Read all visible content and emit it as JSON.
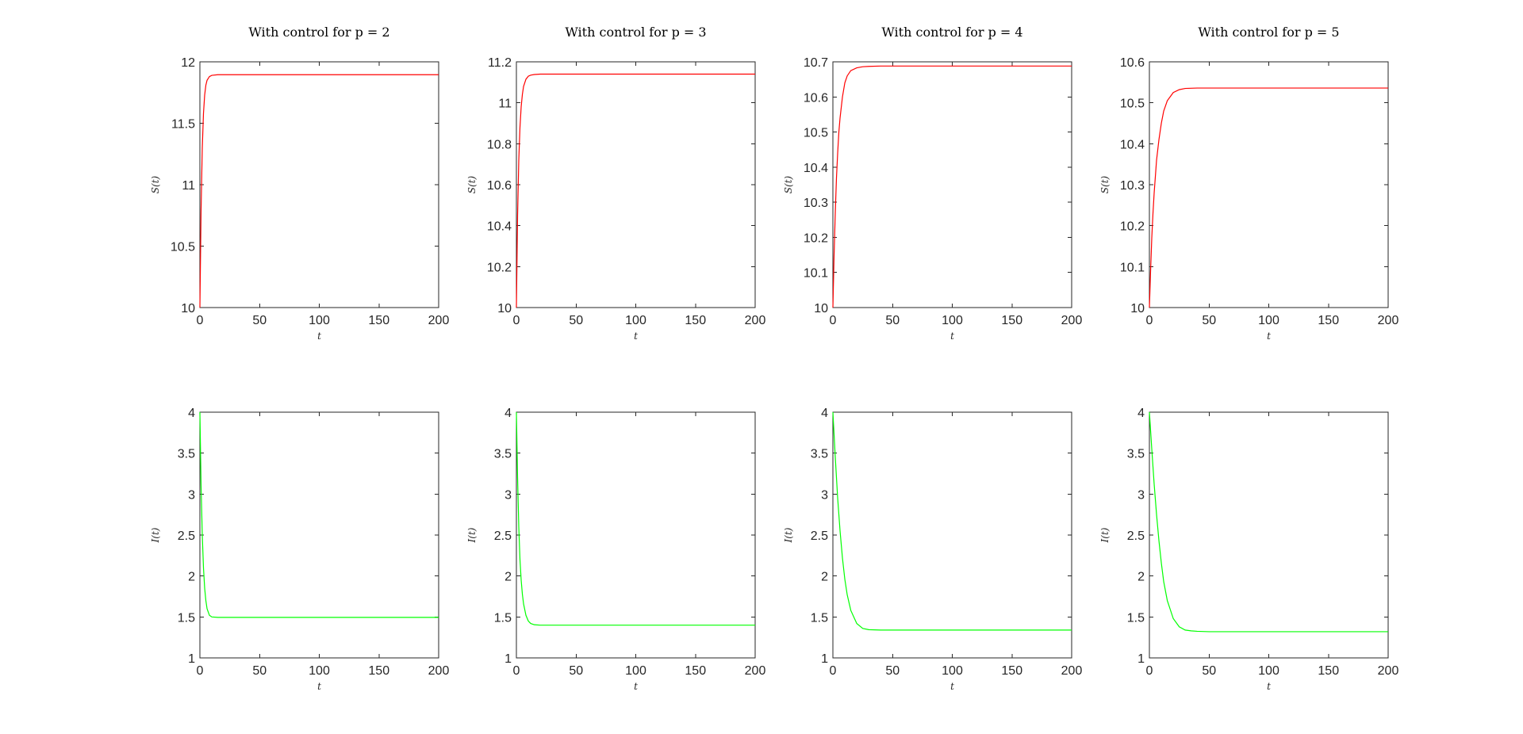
{
  "chart_data": [
    {
      "id": "s_p2",
      "type": "line",
      "title": "With control for p = 2",
      "xlabel": "t",
      "ylabel": "S(t)",
      "xlim": [
        0,
        200
      ],
      "ylim": [
        10,
        12
      ],
      "xticks": [
        0,
        50,
        100,
        150,
        200
      ],
      "yticks": [
        10,
        10.5,
        11,
        11.5,
        12
      ],
      "ytick_labels": [
        "10",
        "10.5",
        "11",
        "11.5",
        "12"
      ],
      "color": "#ff0000",
      "x": [
        0,
        1,
        2,
        3,
        4,
        5,
        6,
        8,
        10,
        15,
        20,
        50,
        100,
        150,
        200
      ],
      "y": [
        10,
        10.8,
        11.3,
        11.58,
        11.73,
        11.81,
        11.85,
        11.88,
        11.89,
        11.895,
        11.895,
        11.895,
        11.895,
        11.895,
        11.895
      ]
    },
    {
      "id": "s_p3",
      "type": "line",
      "title": "With control for p = 3",
      "xlabel": "t",
      "ylabel": "S(t)",
      "xlim": [
        0,
        200
      ],
      "ylim": [
        10,
        11.2
      ],
      "xticks": [
        0,
        50,
        100,
        150,
        200
      ],
      "yticks": [
        10,
        10.2,
        10.4,
        10.6,
        10.8,
        11,
        11.2
      ],
      "ytick_labels": [
        "10",
        "10.2",
        "10.4",
        "10.6",
        "10.8",
        "11",
        "11.2"
      ],
      "color": "#ff0000",
      "x": [
        0,
        1,
        2,
        3,
        4,
        5,
        6,
        8,
        10,
        12,
        15,
        20,
        30,
        50,
        100,
        150,
        200
      ],
      "y": [
        10,
        10.45,
        10.72,
        10.88,
        10.98,
        11.04,
        11.08,
        11.115,
        11.13,
        11.135,
        11.138,
        11.14,
        11.14,
        11.14,
        11.14,
        11.14,
        11.14
      ]
    },
    {
      "id": "s_p4",
      "type": "line",
      "title": "With control for p = 4",
      "xlabel": "t",
      "ylabel": "S(t)",
      "xlim": [
        0,
        200
      ],
      "ylim": [
        10,
        10.7
      ],
      "xticks": [
        0,
        50,
        100,
        150,
        200
      ],
      "yticks": [
        10,
        10.1,
        10.2,
        10.3,
        10.4,
        10.5,
        10.6,
        10.7
      ],
      "ytick_labels": [
        "10",
        "10.1",
        "10.2",
        "10.3",
        "10.4",
        "10.5",
        "10.6",
        "10.7"
      ],
      "color": "#ff0000",
      "x": [
        0,
        1,
        2,
        3,
        4,
        5,
        6,
        8,
        10,
        12,
        15,
        20,
        25,
        30,
        40,
        50,
        100,
        150,
        200
      ],
      "y": [
        10,
        10.15,
        10.27,
        10.37,
        10.44,
        10.5,
        10.54,
        10.6,
        10.64,
        10.66,
        10.675,
        10.683,
        10.686,
        10.687,
        10.688,
        10.688,
        10.688,
        10.688,
        10.688
      ]
    },
    {
      "id": "s_p5",
      "type": "line",
      "title": "With control for p = 5",
      "xlabel": "t",
      "ylabel": "S(t)",
      "xlim": [
        0,
        200
      ],
      "ylim": [
        10,
        10.6
      ],
      "xticks": [
        0,
        50,
        100,
        150,
        200
      ],
      "yticks": [
        10,
        10.1,
        10.2,
        10.3,
        10.4,
        10.5,
        10.6
      ],
      "ytick_labels": [
        "10",
        "10.1",
        "10.2",
        "10.3",
        "10.4",
        "10.5",
        "10.6"
      ],
      "color": "#ff0000",
      "x": [
        0,
        1,
        2,
        3,
        4,
        5,
        6,
        8,
        10,
        12,
        15,
        20,
        25,
        30,
        40,
        50,
        100,
        150,
        200
      ],
      "y": [
        10,
        10.09,
        10.17,
        10.23,
        10.28,
        10.32,
        10.36,
        10.41,
        10.45,
        10.48,
        10.505,
        10.525,
        10.532,
        10.535,
        10.536,
        10.536,
        10.536,
        10.536,
        10.536
      ]
    },
    {
      "id": "i_p2",
      "type": "line",
      "title": "",
      "xlabel": "t",
      "ylabel": "I(t)",
      "xlim": [
        0,
        200
      ],
      "ylim": [
        1,
        4
      ],
      "xticks": [
        0,
        50,
        100,
        150,
        200
      ],
      "yticks": [
        1,
        1.5,
        2,
        2.5,
        3,
        3.5,
        4
      ],
      "ytick_labels": [
        "1",
        "1.5",
        "2",
        "2.5",
        "3",
        "3.5",
        "4"
      ],
      "color": "#00ff00",
      "x": [
        0,
        1,
        2,
        3,
        4,
        5,
        6,
        8,
        10,
        15,
        20,
        50,
        100,
        150,
        200
      ],
      "y": [
        4,
        3.1,
        2.5,
        2.1,
        1.85,
        1.7,
        1.6,
        1.52,
        1.5,
        1.495,
        1.495,
        1.495,
        1.495,
        1.495,
        1.495
      ]
    },
    {
      "id": "i_p3",
      "type": "line",
      "title": "",
      "xlabel": "t",
      "ylabel": "I(t)",
      "xlim": [
        0,
        200
      ],
      "ylim": [
        1,
        4
      ],
      "xticks": [
        0,
        50,
        100,
        150,
        200
      ],
      "yticks": [
        1,
        1.5,
        2,
        2.5,
        3,
        3.5,
        4
      ],
      "ytick_labels": [
        "1",
        "1.5",
        "2",
        "2.5",
        "3",
        "3.5",
        "4"
      ],
      "color": "#00ff00",
      "x": [
        0,
        1,
        2,
        3,
        4,
        5,
        6,
        8,
        10,
        12,
        15,
        20,
        30,
        50,
        100,
        150,
        200
      ],
      "y": [
        4,
        3.2,
        2.6,
        2.2,
        1.95,
        1.78,
        1.66,
        1.52,
        1.45,
        1.42,
        1.405,
        1.4,
        1.4,
        1.4,
        1.4,
        1.4,
        1.4
      ]
    },
    {
      "id": "i_p4",
      "type": "line",
      "title": "",
      "xlabel": "t",
      "ylabel": "I(t)",
      "xlim": [
        0,
        200
      ],
      "ylim": [
        1,
        4
      ],
      "xticks": [
        0,
        50,
        100,
        150,
        200
      ],
      "yticks": [
        1,
        1.5,
        2,
        2.5,
        3,
        3.5,
        4
      ],
      "ytick_labels": [
        "1",
        "1.5",
        "2",
        "2.5",
        "3",
        "3.5",
        "4"
      ],
      "color": "#00ff00",
      "x": [
        0,
        2,
        4,
        6,
        8,
        10,
        12,
        15,
        20,
        25,
        30,
        40,
        50,
        100,
        150,
        200
      ],
      "y": [
        4,
        3.45,
        2.95,
        2.55,
        2.22,
        1.96,
        1.77,
        1.58,
        1.42,
        1.36,
        1.345,
        1.34,
        1.34,
        1.34,
        1.34,
        1.34
      ]
    },
    {
      "id": "i_p5",
      "type": "line",
      "title": "",
      "xlabel": "t",
      "ylabel": "I(t)",
      "xlim": [
        0,
        200
      ],
      "ylim": [
        1,
        4
      ],
      "xticks": [
        0,
        50,
        100,
        150,
        200
      ],
      "yticks": [
        1,
        1.5,
        2,
        2.5,
        3,
        3.5,
        4
      ],
      "ytick_labels": [
        "1",
        "1.5",
        "2",
        "2.5",
        "3",
        "3.5",
        "4"
      ],
      "color": "#00ff00",
      "x": [
        0,
        2,
        4,
        6,
        8,
        10,
        12,
        15,
        20,
        25,
        30,
        35,
        40,
        50,
        100,
        150,
        200
      ],
      "y": [
        4,
        3.55,
        3.12,
        2.75,
        2.43,
        2.16,
        1.93,
        1.7,
        1.48,
        1.38,
        1.34,
        1.33,
        1.325,
        1.32,
        1.32,
        1.32,
        1.32
      ]
    }
  ]
}
